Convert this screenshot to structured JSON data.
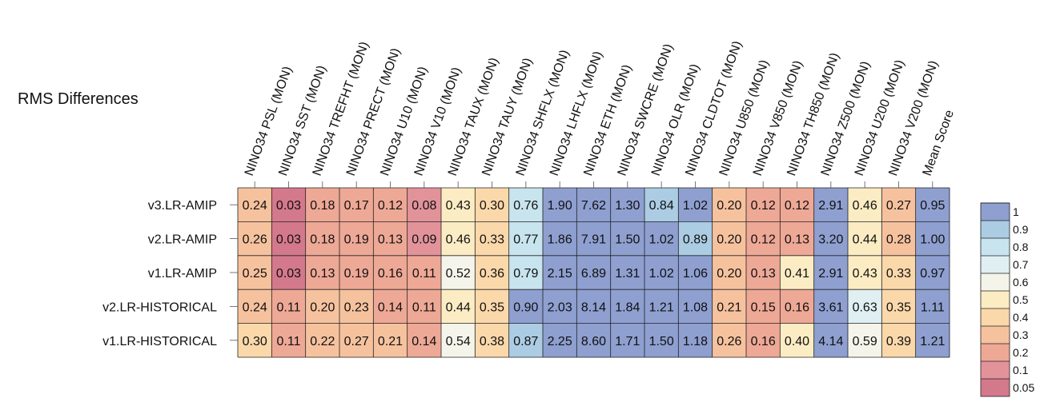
{
  "chart_data": {
    "type": "heatmap",
    "title": "RMS Differences",
    "columns": [
      "NINO34 PSL (MON)",
      "NINO34 SST (MON)",
      "NINO34 TREFHT (MON)",
      "NINO34 PRECT (MON)",
      "NINO34 U10 (MON)",
      "NINO34 V10 (MON)",
      "NINO34 TAUX (MON)",
      "NINO34 TAUY (MON)",
      "NINO34 SHFLX (MON)",
      "NINO34 LHFLX (MON)",
      "NINO34 ETH (MON)",
      "NINO34 SWCRE (MON)",
      "NINO34 OLR (MON)",
      "NINO34 CLDTOT (MON)",
      "NINO34 U850 (MON)",
      "NINO34 V850 (MON)",
      "NINO34 TH850 (MON)",
      "NINO34 Z500 (MON)",
      "NINO34 U200 (MON)",
      "NINO34 V200 (MON)",
      "Mean Score"
    ],
    "rows": [
      "v3.LR-AMIP",
      "v2.LR-AMIP",
      "v1.LR-AMIP",
      "v2.LR-HISTORICAL",
      "v1.LR-HISTORICAL"
    ],
    "values": [
      [
        0.24,
        0.03,
        0.18,
        0.17,
        0.12,
        0.08,
        0.43,
        0.3,
        0.76,
        1.9,
        7.62,
        1.3,
        0.84,
        1.02,
        0.2,
        0.12,
        0.12,
        2.91,
        0.46,
        0.27,
        0.95
      ],
      [
        0.26,
        0.03,
        0.18,
        0.19,
        0.13,
        0.09,
        0.46,
        0.33,
        0.77,
        1.86,
        7.91,
        1.5,
        1.02,
        0.89,
        0.2,
        0.12,
        0.13,
        3.2,
        0.44,
        0.28,
        1.0
      ],
      [
        0.25,
        0.03,
        0.13,
        0.19,
        0.16,
        0.11,
        0.52,
        0.36,
        0.79,
        2.15,
        6.89,
        1.31,
        1.02,
        1.06,
        0.2,
        0.13,
        0.41,
        2.91,
        0.43,
        0.33,
        0.97
      ],
      [
        0.24,
        0.11,
        0.2,
        0.23,
        0.14,
        0.11,
        0.44,
        0.35,
        0.9,
        2.03,
        8.14,
        1.84,
        1.21,
        1.08,
        0.21,
        0.15,
        0.16,
        3.61,
        0.63,
        0.35,
        1.11
      ],
      [
        0.3,
        0.11,
        0.22,
        0.27,
        0.21,
        0.14,
        0.54,
        0.38,
        0.87,
        2.25,
        8.6,
        1.71,
        1.5,
        1.18,
        0.26,
        0.16,
        0.4,
        4.14,
        0.59,
        0.39,
        1.21
      ]
    ],
    "value_labels": [
      [
        "0.24",
        "0.03",
        "0.18",
        "0.17",
        "0.12",
        "0.08",
        "0.43",
        "0.30",
        "0.76",
        "1.90",
        "7.62",
        "1.30",
        "0.84",
        "1.02",
        "0.20",
        "0.12",
        "0.12",
        "2.91",
        "0.46",
        "0.27",
        "0.95"
      ],
      [
        "0.26",
        "0.03",
        "0.18",
        "0.19",
        "0.13",
        "0.09",
        "0.46",
        "0.33",
        "0.77",
        "1.86",
        "7.91",
        "1.50",
        "1.02",
        "0.89",
        "0.20",
        "0.12",
        "0.13",
        "3.20",
        "0.44",
        "0.28",
        "1.00"
      ],
      [
        "0.25",
        "0.03",
        "0.13",
        "0.19",
        "0.16",
        "0.11",
        "0.52",
        "0.36",
        "0.79",
        "2.15",
        "6.89",
        "1.31",
        "1.02",
        "1.06",
        "0.20",
        "0.13",
        "0.41",
        "2.91",
        "0.43",
        "0.33",
        "0.97"
      ],
      [
        "0.24",
        "0.11",
        "0.20",
        "0.23",
        "0.14",
        "0.11",
        "0.44",
        "0.35",
        "0.90",
        "2.03",
        "8.14",
        "1.84",
        "1.21",
        "1.08",
        "0.21",
        "0.15",
        "0.16",
        "3.61",
        "0.63",
        "0.35",
        "1.11"
      ],
      [
        "0.30",
        "0.11",
        "0.22",
        "0.27",
        "0.21",
        "0.14",
        "0.54",
        "0.38",
        "0.87",
        "2.25",
        "8.60",
        "1.71",
        "1.50",
        "1.18",
        "0.26",
        "0.16",
        "0.40",
        "4.14",
        "0.59",
        "0.39",
        "1.21"
      ]
    ],
    "colorbar": {
      "levels": [
        0,
        0.05,
        0.1,
        0.2,
        0.3,
        0.4,
        0.5,
        0.6,
        0.7,
        0.8,
        0.9,
        1
      ],
      "tick_labels": [
        "0.05",
        "0.1",
        "0.2",
        "0.3",
        "0.4",
        "0.5",
        "0.6",
        "0.7",
        "0.8",
        "0.9",
        "1"
      ],
      "colors": [
        "#d3798b",
        "#e2939a",
        "#eea896",
        "#f6c29e",
        "#fad8aa",
        "#fcecc3",
        "#f4f4ea",
        "#e0f0f2",
        "#c8e4ee",
        "#abcce3",
        "#8e9fd0"
      ]
    }
  }
}
